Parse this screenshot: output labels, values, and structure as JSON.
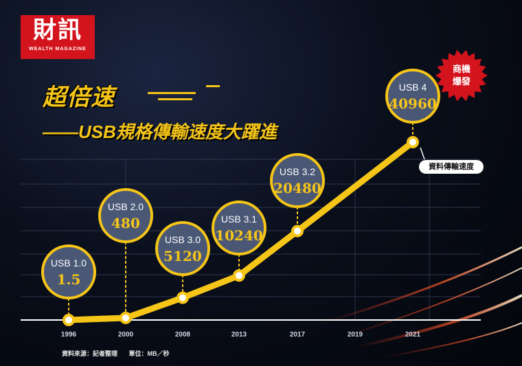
{
  "logo": {
    "name": "財訊",
    "tagline": "WEALTH MAGAZINE"
  },
  "title": {
    "main": "超倍速",
    "sub": "——USB規格傳輸速度大躍進"
  },
  "badge": {
    "line1": "商機",
    "line2": "爆發"
  },
  "series_tag": "資料傳輸速度",
  "footer": {
    "source": "資料來源：記者整理",
    "unit": "單位：MB／秒"
  },
  "colors": {
    "accent": "#f5c518",
    "bubble": "#4a5876",
    "badge": "#d4141c",
    "logo": "#d4141c"
  },
  "chart_data": {
    "type": "line",
    "x": [
      "1996",
      "2000",
      "2008",
      "2013",
      "2017",
      "2019",
      "2021"
    ],
    "ticks": [
      "1996",
      "2000",
      "2008",
      "2013",
      "2017",
      "2019",
      "2021"
    ],
    "series": [
      {
        "name": "資料傳輸速度",
        "values": [
          1.5,
          480,
          5120,
          10240,
          20480,
          null,
          40960
        ]
      }
    ],
    "annotations": [
      {
        "label": "USB 1.0",
        "value": "1.5",
        "x": "1996"
      },
      {
        "label": "USB 2.0",
        "value": "480",
        "x": "2000"
      },
      {
        "label": "USB 3.0",
        "value": "5120",
        "x": "2008"
      },
      {
        "label": "USB 3.1",
        "value": "10240",
        "x": "2013"
      },
      {
        "label": "USB 3.2",
        "value": "20480",
        "x": "2017"
      },
      {
        "label": "USB 4",
        "value": "40960",
        "x": "2021"
      }
    ],
    "grid": true
  }
}
